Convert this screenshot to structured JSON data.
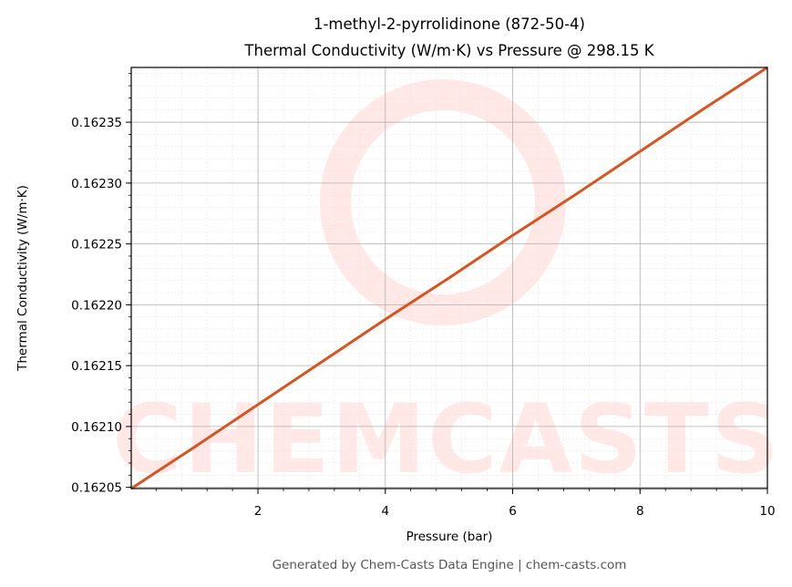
{
  "colors": {
    "line": "#d9531e",
    "watermark": "#ffe8e6",
    "grid_major": "#b0b0b0",
    "grid_minor": "#e6e6e6"
  },
  "watermark": {
    "text": "CHEMCASTS"
  },
  "footer": {
    "text": "Generated by Chem-Casts Data Engine | chem-casts.com"
  },
  "chart_data": {
    "type": "line",
    "title": "1-methyl-2-pyrrolidinone (872-50-4)",
    "subtitle": "Thermal Conductivity (W/m·K) vs Pressure @ 298.15 K",
    "xlabel": "Pressure (bar)",
    "ylabel": "Thermal Conductivity (W/m·K)",
    "xlim": [
      0.01,
      10
    ],
    "ylim": [
      0.162049,
      0.162395
    ],
    "xticks": [
      2,
      4,
      6,
      8,
      10
    ],
    "xtick_labels": [
      "2",
      "4",
      "6",
      "8",
      "10"
    ],
    "yticks": [
      0.16205,
      0.1621,
      0.16215,
      0.1622,
      0.16225,
      0.1623,
      0.16235
    ],
    "ytick_labels": [
      "0.16205",
      "0.16210",
      "0.16215",
      "0.16220",
      "0.16225",
      "0.16230",
      "0.16235"
    ],
    "grid": true,
    "legend": "none",
    "series": [
      {
        "x": [
          0.01,
          1,
          2,
          3,
          4,
          5,
          6,
          7,
          8,
          9,
          10
        ],
        "y": [
          0.162049,
          0.162083,
          0.162118,
          0.162153,
          0.162188,
          0.162222,
          0.162257,
          0.162291,
          0.162326,
          0.162361,
          0.162395
        ]
      }
    ]
  }
}
